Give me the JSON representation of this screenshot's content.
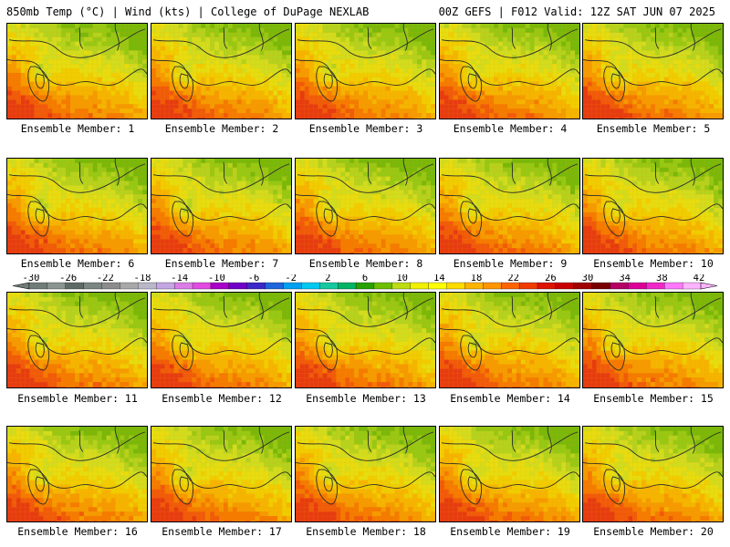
{
  "header": {
    "left_title": "850mb Temp (°C) | Wind (kts) | College of DuPage NEXLAB",
    "right_title": "00Z GEFS | F012 Valid: 12Z SAT JUN 07 2025"
  },
  "member_caption_prefix": "Ensemble Member: ",
  "members": [
    1,
    2,
    3,
    4,
    5,
    6,
    7,
    8,
    9,
    10,
    11,
    12,
    13,
    14,
    15,
    16,
    17,
    18,
    19,
    20
  ],
  "colorbar": {
    "tick_labels": [
      "-30",
      "-26",
      "-22",
      "-18",
      "-14",
      "-10",
      "-6",
      "-2",
      "2",
      "6",
      "10",
      "14",
      "18",
      "22",
      "26",
      "30",
      "34",
      "38",
      "42"
    ],
    "colors": [
      "#6f7c78",
      "#8a9490",
      "#5e6a66",
      "#7b8582",
      "#8c8c8c",
      "#a8a8a8",
      "#b8b8c8",
      "#c4a6e2",
      "#dc7ce6",
      "#e24ae2",
      "#a800c8",
      "#7000c8",
      "#3c28c8",
      "#1e64dc",
      "#00a0f0",
      "#00c8f0",
      "#14c8a0",
      "#00b464",
      "#28a000",
      "#6ebe00",
      "#bedc14",
      "#f0f000",
      "#ffff00",
      "#ffdc00",
      "#ffb400",
      "#ff9600",
      "#ff6400",
      "#f03c00",
      "#dc1400",
      "#c80000",
      "#a00000",
      "#780000",
      "#b40064",
      "#dc0096",
      "#f028c8",
      "#ff78ff",
      "#ffb4ff"
    ]
  }
}
